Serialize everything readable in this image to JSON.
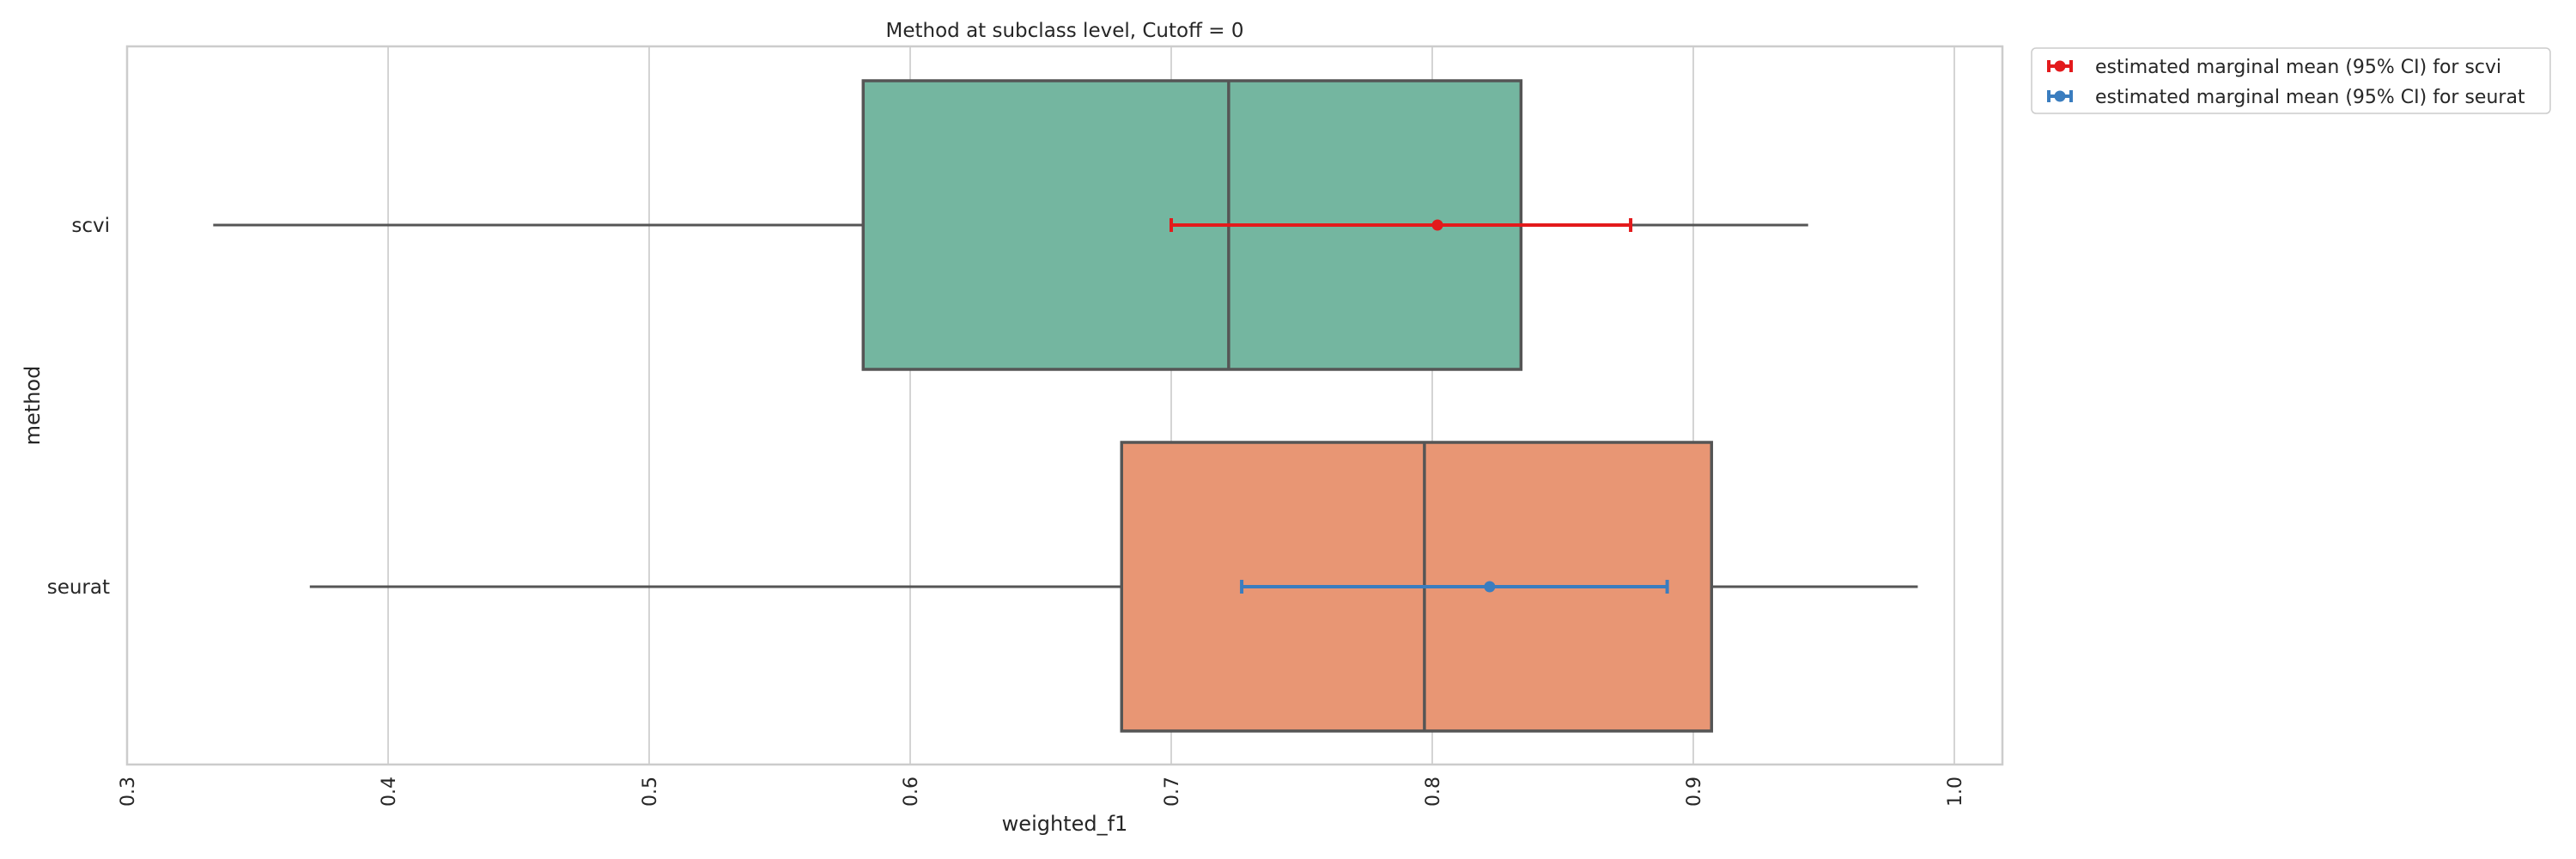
{
  "chart_data": {
    "type": "box",
    "title": "Method at subclass level, Cutoff = 0",
    "xlabel": "weighted_f1",
    "ylabel": "method",
    "xlim": [
      0.3,
      1.02
    ],
    "xticks": [
      "0.3",
      "0.4",
      "0.5",
      "0.6",
      "0.7",
      "0.8",
      "0.9",
      "1.0"
    ],
    "grid": true,
    "legend_position": "outside-top-right",
    "categories": [
      "scvi",
      "seurat"
    ],
    "boxes": [
      {
        "category": "scvi",
        "whisker_low": 0.333,
        "q1": 0.582,
        "median": 0.722,
        "q3": 0.834,
        "whisker_high": 0.944,
        "color": "#74b6a0"
      },
      {
        "category": "seurat",
        "whisker_low": 0.37,
        "q1": 0.681,
        "median": 0.797,
        "q3": 0.907,
        "whisker_high": 0.986,
        "color": "#e89674"
      }
    ],
    "series": [
      {
        "name": "estimated marginal mean (95% CI) for scvi",
        "category": "scvi",
        "mean": 0.802,
        "ci_low": 0.7,
        "ci_high": 0.876,
        "color": "#e31a1c"
      },
      {
        "name": "estimated marginal mean (95% CI) for seurat",
        "category": "seurat",
        "mean": 0.822,
        "ci_low": 0.727,
        "ci_high": 0.89,
        "color": "#3a7dbf"
      }
    ]
  }
}
